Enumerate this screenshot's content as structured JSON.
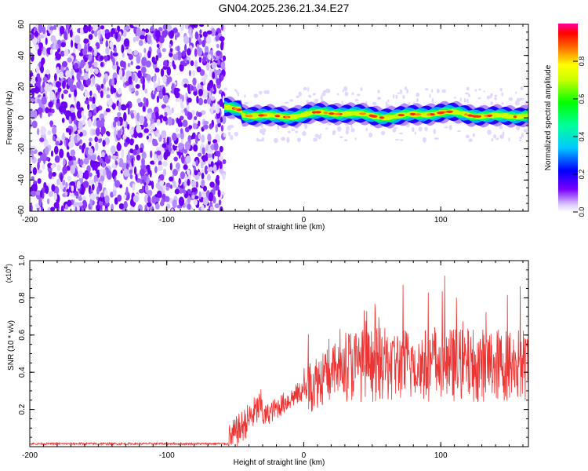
{
  "title": "GN04.2025.236.21.34.E27",
  "chart_data": [
    {
      "type": "heatmap",
      "title": "GN04.2025.236.21.34.E27",
      "xlabel": "Height of straight line (km)",
      "ylabel": "Frequency (Hz)",
      "xlim": [
        -200,
        164
      ],
      "ylim": [
        -60,
        60
      ],
      "x_ticks": [
        "-200",
        "-100",
        "0",
        "100"
      ],
      "y_ticks": [
        "60",
        "40",
        "20",
        "0",
        "-20",
        "-40",
        "-60"
      ],
      "colorbar": {
        "label": "Normalized spectral amplitude",
        "range": [
          0,
          1
        ],
        "ticks": [
          "0.0",
          "0.2",
          "0.4",
          "0.6",
          "0.8"
        ]
      },
      "noise_region_x": [
        -200,
        -58
      ],
      "signal_region_x": [
        -58,
        164
      ],
      "signal_center_hz": 2,
      "signal_halfwidth_hz": 6,
      "signal_peak_amplitude": 0.95
    },
    {
      "type": "line",
      "xlabel": "Height of straight line (km)",
      "ylabel": "SNR (10 * v/v)",
      "y_multiplier": "(x10",
      "y_multiplier_exp": "4",
      "y_multiplier_close": ")",
      "xlim": [
        -200,
        164
      ],
      "ylim": [
        0,
        1.0
      ],
      "x_ticks": [
        "-200",
        "-100",
        "0",
        "100"
      ],
      "y_ticks": [
        "0.2",
        "0.4",
        "0.6",
        "0.8",
        "1.0"
      ],
      "series": [
        {
          "name": "SNR",
          "color": "#ee3333",
          "segments": [
            {
              "x_range": [
                -200,
                -55
              ],
              "base": 0.015,
              "noise": 0.012
            },
            {
              "x_range": [
                -55,
                -30
              ],
              "base_start": 0.02,
              "base_end": 0.22,
              "noise": 0.18
            },
            {
              "x_range": [
                -30,
                0
              ],
              "base_start": 0.15,
              "base_end": 0.3,
              "noise": 0.12
            },
            {
              "x_range": [
                0,
                30
              ],
              "base_start": 0.3,
              "base_end": 0.42,
              "noise": 0.3
            },
            {
              "x_range": [
                30,
                164
              ],
              "base": 0.42,
              "noise": 0.4
            }
          ]
        }
      ]
    }
  ]
}
